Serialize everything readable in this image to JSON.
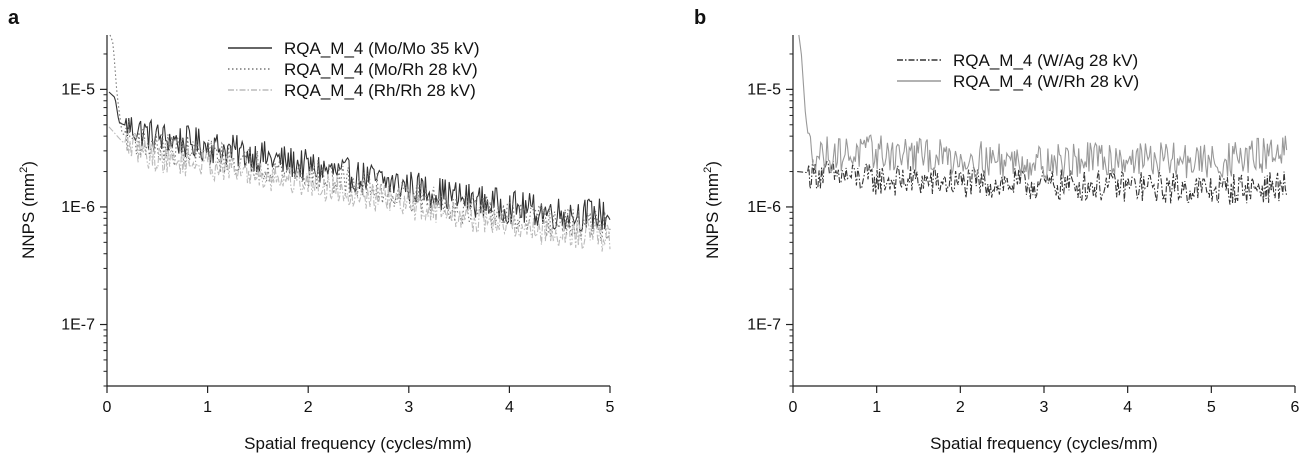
{
  "panels": [
    {
      "letter": "a"
    },
    {
      "letter": "b"
    }
  ],
  "chart_data": [
    {
      "panel": "a",
      "type": "line",
      "xlabel": "Spatial frequency (cycles/mm)",
      "ylabel_main": "NNPS (mm",
      "ylabel_sup": "2",
      "ylabel_end": ")",
      "xlim": [
        0,
        5
      ],
      "ylim": [
        3e-08,
        2.9e-05
      ],
      "yscale": "log",
      "xticks": [
        0,
        1,
        2,
        3,
        4,
        5
      ],
      "xtick_labels": [
        "0",
        "1",
        "2",
        "3",
        "4",
        "5"
      ],
      "yticks": [
        1e-05,
        1e-06,
        1e-07
      ],
      "ytick_labels": [
        "1E-5",
        "1E-6",
        "1E-7"
      ],
      "legend_position": "top-right",
      "grid": false,
      "series": [
        {
          "name": "RQA_M_4 (Mo/Mo 35 kV)",
          "color": "#333333",
          "dash": "solid",
          "key_points": [
            [
              0.02,
              9.5e-06
            ],
            [
              0.08,
              8.5e-06
            ],
            [
              0.12,
              5.2e-06
            ],
            [
              0.5,
              3.9e-06
            ],
            [
              1.0,
              3.3e-06
            ],
            [
              1.5,
              2.7e-06
            ],
            [
              2.0,
              2.2e-06
            ],
            [
              2.5,
              1.8e-06
            ],
            [
              3.0,
              1.5e-06
            ],
            [
              3.5,
              1.2e-06
            ],
            [
              4.0,
              1e-06
            ],
            [
              4.5,
              8.8e-07
            ],
            [
              5.0,
              8.5e-07
            ]
          ]
        },
        {
          "name": "RQA_M_4 (Mo/Rh 28 kV)",
          "color": "#777777",
          "dash": "dotted",
          "key_points": [
            [
              0.03,
              2.9e-05
            ],
            [
              0.06,
              2.5e-05
            ],
            [
              0.1,
              9e-06
            ],
            [
              0.15,
              4.2e-06
            ],
            [
              0.5,
              3.2e-06
            ],
            [
              1.0,
              2.8e-06
            ],
            [
              1.5,
              2.3e-06
            ],
            [
              2.0,
              1.9e-06
            ],
            [
              2.5,
              1.55e-06
            ],
            [
              3.0,
              1.25e-06
            ],
            [
              3.5,
              1e-06
            ],
            [
              4.0,
              8.5e-07
            ],
            [
              4.5,
              7.3e-07
            ],
            [
              5.0,
              6.8e-07
            ]
          ]
        },
        {
          "name": "RQA_M_4 (Rh/Rh 28 kV)",
          "color": "#bbbbbb",
          "dash": "dashdot",
          "key_points": [
            [
              0.02,
              4.8e-06
            ],
            [
              0.15,
              3.6e-06
            ],
            [
              0.5,
              2.6e-06
            ],
            [
              1.0,
              2.3e-06
            ],
            [
              1.5,
              1.9e-06
            ],
            [
              2.0,
              1.6e-06
            ],
            [
              2.5,
              1.3e-06
            ],
            [
              3.0,
              1.05e-06
            ],
            [
              3.5,
              8.5e-07
            ],
            [
              4.0,
              7e-07
            ],
            [
              4.5,
              6e-07
            ],
            [
              5.0,
              5.5e-07
            ]
          ]
        }
      ]
    },
    {
      "panel": "b",
      "type": "line",
      "xlabel": "Spatial frequency (cycles/mm)",
      "ylabel_main": "NNPS (mm",
      "ylabel_sup": "2",
      "ylabel_end": ")",
      "xlim": [
        0,
        6
      ],
      "ylim": [
        3e-08,
        2.9e-05
      ],
      "yscale": "log",
      "xticks": [
        0,
        1,
        2,
        3,
        4,
        5,
        6
      ],
      "xtick_labels": [
        "0",
        "1",
        "2",
        "3",
        "4",
        "5",
        "6"
      ],
      "yticks": [
        1e-05,
        1e-06,
        1e-07
      ],
      "ytick_labels": [
        "1E-5",
        "1E-6",
        "1E-7"
      ],
      "legend_position": "top-right",
      "grid": false,
      "series": [
        {
          "name": "RQA_M_4 (W/Ag 28 kV)",
          "color": "#333333",
          "dash": "dashdot",
          "key_points": [
            [
              0.05,
              2e-06
            ],
            [
              1.0,
              1.7e-06
            ],
            [
              2.0,
              1.6e-06
            ],
            [
              3.0,
              1.55e-06
            ],
            [
              4.0,
              1.5e-06
            ],
            [
              5.0,
              1.4e-06
            ],
            [
              5.9,
              1.5e-06
            ]
          ]
        },
        {
          "name": "RQA_M_4 (W/Rh 28 kV)",
          "color": "#999999",
          "dash": "solid",
          "key_points": [
            [
              0.07,
              2.9e-05
            ],
            [
              0.1,
              2e-05
            ],
            [
              0.15,
              6e-06
            ],
            [
              0.2,
              3.2e-06
            ],
            [
              0.3,
              2.8e-06
            ],
            [
              1.0,
              2.9e-06
            ],
            [
              2.0,
              2.6e-06
            ],
            [
              3.0,
              2.4e-06
            ],
            [
              4.0,
              2.6e-06
            ],
            [
              5.0,
              2.4e-06
            ],
            [
              5.9,
              2.9e-06
            ]
          ]
        }
      ]
    }
  ]
}
